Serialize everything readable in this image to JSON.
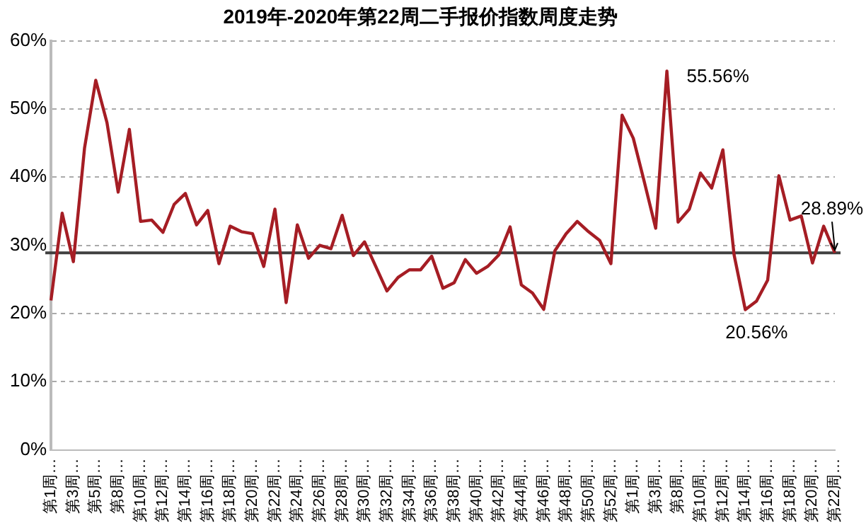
{
  "chart_data": {
    "type": "line",
    "title": "2019年-2020年第22周二手报价指数周度走势",
    "categories": [
      "第1周…",
      null,
      "第3周…",
      null,
      "第5周…",
      null,
      "第8周…",
      null,
      "第10周…",
      null,
      "第12周…",
      null,
      "第14周…",
      null,
      "第16周…",
      null,
      "第18周…",
      null,
      "第20周…",
      null,
      "第22周…",
      null,
      "第24周…",
      null,
      "第26周…",
      null,
      "第28周…",
      null,
      "第30周…",
      null,
      "第32周…",
      null,
      "第34周…",
      null,
      "第36周…",
      null,
      "第38周…",
      null,
      "第40周…",
      null,
      "第42周…",
      null,
      "第44周…",
      null,
      "第46周…",
      null,
      "第48周…",
      null,
      "第50周…",
      null,
      "第52周…",
      null,
      "第1周…",
      null,
      "第3周…",
      null,
      "第8周…",
      null,
      "第10周…",
      null,
      "第12周…",
      null,
      "第14周…",
      null,
      "第16周…",
      null,
      "第18周…",
      null,
      "第20周…",
      null,
      "第22周…"
    ],
    "series": [
      {
        "color": "#a51d24",
        "values": [
          21.9,
          34.7,
          27.6,
          44.3,
          54.2,
          48.0,
          37.8,
          47.0,
          33.5,
          33.7,
          31.9,
          36.0,
          37.6,
          33.0,
          35.1,
          27.3,
          32.8,
          32.0,
          31.7,
          26.9,
          35.3,
          21.6,
          33.0,
          28.1,
          30.0,
          29.5,
          34.4,
          28.5,
          30.5,
          26.9,
          23.3,
          25.3,
          26.4,
          26.4,
          28.4,
          23.7,
          24.5,
          27.9,
          25.9,
          26.9,
          28.6,
          32.7,
          24.2,
          23.0,
          20.6,
          29.2,
          31.7,
          33.5,
          32.0,
          30.7,
          27.3,
          49.1,
          45.7,
          39.2,
          32.5,
          55.56,
          33.4,
          35.3,
          40.6,
          38.4,
          44.0,
          28.6,
          20.56,
          21.8,
          24.9,
          40.2,
          33.7,
          34.3,
          27.4,
          32.8,
          28.89
        ],
        "value_labels": [
          null,
          null,
          null,
          null,
          null,
          null,
          null,
          null,
          null,
          null,
          null,
          null,
          null,
          null,
          null,
          null,
          null,
          null,
          null,
          null,
          null,
          null,
          null,
          null,
          null,
          null,
          null,
          null,
          null,
          null,
          null,
          null,
          null,
          null,
          null,
          null,
          null,
          null,
          null,
          null,
          null,
          null,
          null,
          null,
          null,
          null,
          null,
          null,
          null,
          null,
          null,
          null,
          null,
          null,
          null,
          "55.56%",
          null,
          null,
          null,
          null,
          null,
          null,
          "20.56%",
          null,
          null,
          null,
          null,
          null,
          null,
          null,
          "28.89%"
        ]
      }
    ],
    "ylim": [
      0,
      60
    ],
    "yticks": [
      {
        "value": 0,
        "label": "0%"
      },
      {
        "value": 10,
        "label": "10%"
      },
      {
        "value": 20,
        "label": "20%"
      },
      {
        "value": 30,
        "label": "30%"
      },
      {
        "value": 40,
        "label": "40%"
      },
      {
        "value": 50,
        "label": "50%"
      },
      {
        "value": 60,
        "label": "60%"
      }
    ],
    "grid": "y",
    "legend": false,
    "marker": "none",
    "line_style": "solid",
    "ref_lines": [
      {
        "axis": "y",
        "value": 28.89,
        "color": "#404040"
      }
    ]
  }
}
